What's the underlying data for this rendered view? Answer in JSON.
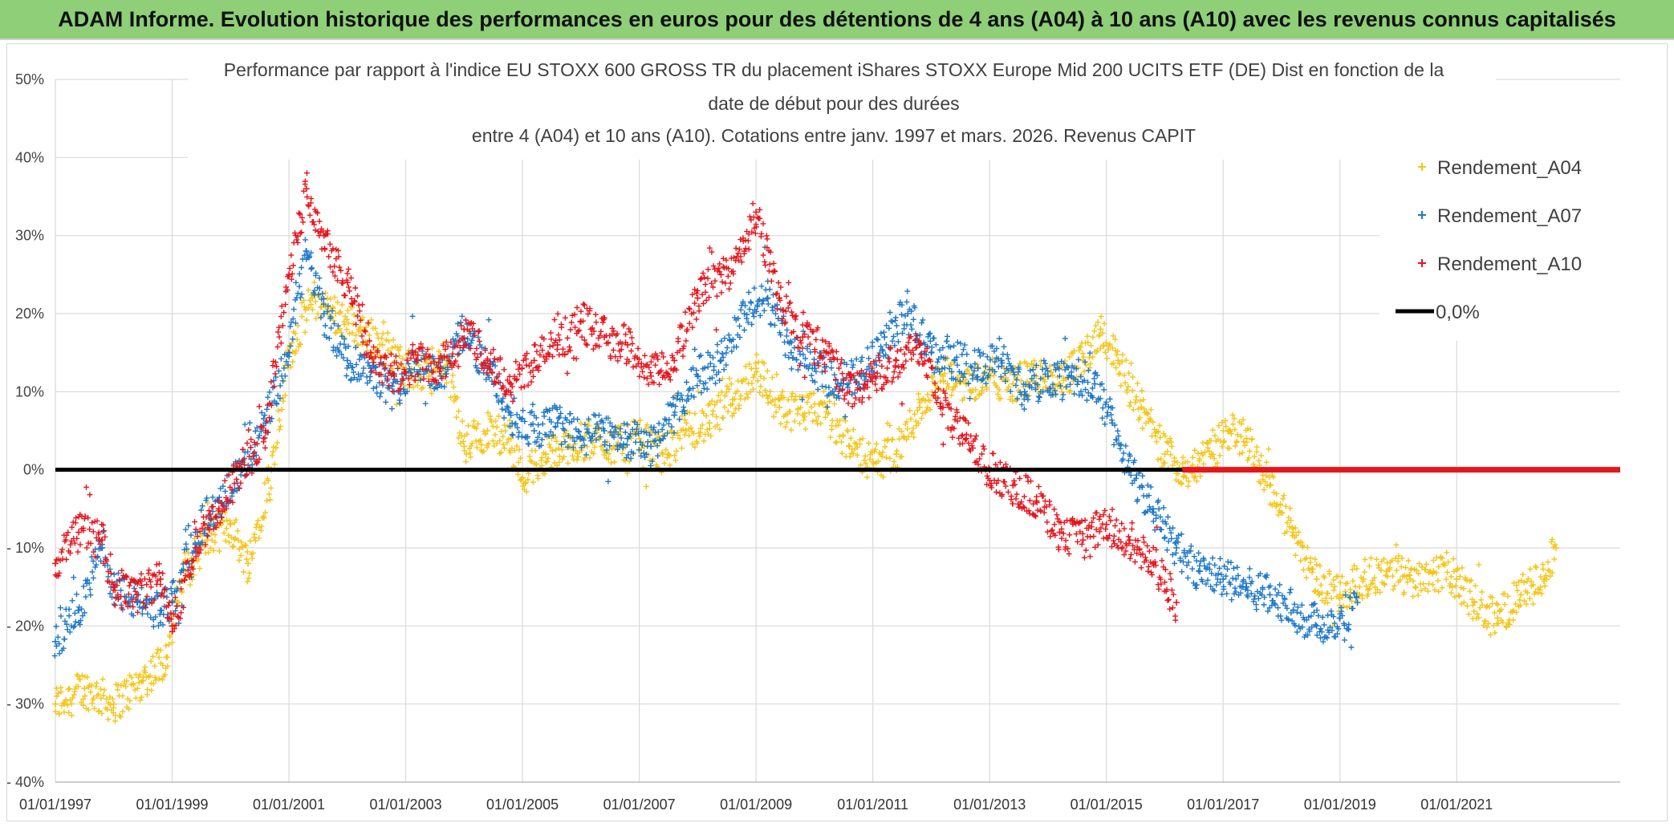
{
  "header": {
    "title": "ADAM Informe. Evolution historique des performances en euros pour des détentions de 4 ans (A04) à 10 ans (A10) avec les revenus connus capitalisés"
  },
  "chart_data": {
    "type": "scatter",
    "title_lines": [
      "Performance par rapport à l'indice EU STOXX 600 GROSS TR  du placement iShares STOXX Europe Mid 200 UCITS ETF (DE) Dist en fonction de la",
      "date de début pour des durées",
      "entre 4 (A04) et 10 ans (A10). Cotations entre janv. 1997 et mars. 2026. Revenus CAPIT"
    ],
    "xlabel": "",
    "ylabel": "",
    "x_range": [
      1997.0,
      2023.8
    ],
    "ylim": [
      -40,
      50
    ],
    "y_ticks": [
      50,
      40,
      30,
      20,
      10,
      0,
      -10,
      -20,
      -30,
      -40
    ],
    "y_tick_labels": [
      "50%",
      "40%",
      "30%",
      "20%",
      "10%",
      "0%",
      "- 10%",
      "- 20%",
      "- 30%",
      "- 40%"
    ],
    "x_ticks": [
      1997,
      1999,
      2001,
      2003,
      2005,
      2007,
      2009,
      2011,
      2013,
      2015,
      2017,
      2019,
      2021
    ],
    "x_tick_labels": [
      "01/01/1997",
      "01/01/1999",
      "01/01/2001",
      "01/01/2003",
      "01/01/2005",
      "01/01/2007",
      "01/01/2009",
      "01/01/2011",
      "01/01/2013",
      "01/01/2015",
      "01/01/2017",
      "01/01/2019",
      "01/01/2021"
    ],
    "grid": true,
    "legend_position": "top-right",
    "series": [
      {
        "name": "Rendement_A04",
        "color": "#f5c518",
        "marker": "plus",
        "x": [
          1997.0,
          1997.5,
          1998.0,
          1998.5,
          1998.9,
          1999.2,
          1999.6,
          2000.0,
          2000.3,
          2000.7,
          2001.0,
          2001.4,
          2001.8,
          2002.2,
          2002.6,
          2003.0,
          2003.4,
          2003.7,
          2004.0,
          2004.4,
          2004.8,
          2005.0,
          2005.4,
          2005.8,
          2006.2,
          2006.6,
          2007.0,
          2007.4,
          2007.8,
          2008.2,
          2008.6,
          2009.0,
          2009.4,
          2009.8,
          2010.2,
          2010.6,
          2011.0,
          2011.4,
          2011.8,
          2012.2,
          2012.6,
          2013.0,
          2013.4,
          2013.8,
          2014.2,
          2014.6,
          2014.9,
          2015.2,
          2015.6,
          2016.0,
          2016.4,
          2016.8,
          2017.1,
          2017.4,
          2017.8,
          2018.2,
          2018.6,
          2019.0,
          2019.4,
          2019.8,
          2020.2,
          2020.6,
          2021.0,
          2021.3,
          2021.7,
          2022.1,
          2022.5,
          2022.7
        ],
        "y": [
          -30,
          -28,
          -30,
          -27,
          -24,
          -13,
          -9,
          -7,
          -12,
          0,
          15,
          22,
          20,
          18,
          16,
          13,
          12,
          14,
          3,
          5,
          4,
          -1,
          2,
          3,
          4,
          3,
          4,
          2,
          5,
          6,
          9,
          13,
          8,
          7,
          8,
          3,
          1,
          2,
          8,
          12,
          11,
          12,
          11,
          12,
          11,
          14,
          18,
          14,
          8,
          2,
          0,
          2,
          5,
          4,
          -2,
          -8,
          -14,
          -16,
          -14,
          -13,
          -14,
          -13,
          -14,
          -17,
          -19,
          -16,
          -14,
          -10
        ]
      },
      {
        "name": "Rendement_A07",
        "color": "#1f78c8",
        "marker": "plus",
        "x": [
          1997.0,
          1997.4,
          1997.8,
          1998.0,
          1998.4,
          1998.8,
          1999.0,
          1999.4,
          1999.8,
          2000.2,
          2000.6,
          2001.0,
          2001.3,
          2001.6,
          2002.0,
          2002.4,
          2002.8,
          2003.2,
          2003.6,
          2004.0,
          2004.4,
          2004.8,
          2005.2,
          2005.6,
          2006.0,
          2006.4,
          2006.8,
          2007.2,
          2007.6,
          2008.0,
          2008.4,
          2008.8,
          2009.2,
          2009.6,
          2010.0,
          2010.4,
          2010.8,
          2011.2,
          2011.6,
          2012.0,
          2012.4,
          2012.8,
          2013.2,
          2013.6,
          2014.0,
          2014.4,
          2014.8,
          2015.1,
          2015.4,
          2015.8,
          2016.2,
          2016.6,
          2017.0,
          2017.4,
          2017.8,
          2018.2,
          2018.6,
          2019.0,
          2019.3
        ],
        "y": [
          -22,
          -18,
          -10,
          -15,
          -17,
          -18,
          -17,
          -8,
          -4,
          0,
          6,
          15,
          28,
          20,
          14,
          13,
          10,
          14,
          12,
          18,
          13,
          7,
          5,
          6,
          4,
          5,
          4,
          3,
          7,
          12,
          14,
          20,
          22,
          15,
          13,
          11,
          12,
          17,
          20,
          15,
          14,
          13,
          14,
          10,
          12,
          12,
          11,
          6,
          0,
          -5,
          -10,
          -13,
          -14,
          -15,
          -16,
          -18,
          -20,
          -19,
          -17
        ]
      },
      {
        "name": "Rendement_A10",
        "color": "#e8141c",
        "marker": "plus",
        "x": [
          1997.0,
          1997.4,
          1997.8,
          1998.0,
          1998.4,
          1998.8,
          1999.0,
          1999.4,
          1999.8,
          2000.2,
          2000.6,
          2001.0,
          2001.3,
          2001.6,
          2002.0,
          2002.4,
          2002.8,
          2003.2,
          2003.6,
          2004.0,
          2004.4,
          2004.8,
          2005.2,
          2005.6,
          2006.0,
          2006.4,
          2006.8,
          2007.2,
          2007.6,
          2008.0,
          2008.4,
          2008.8,
          2009.0,
          2009.4,
          2009.8,
          2010.2,
          2010.6,
          2011.0,
          2011.4,
          2011.8,
          2012.2,
          2012.6,
          2013.0,
          2013.4,
          2013.8,
          2014.2,
          2014.6,
          2015.0,
          2015.4,
          2015.8,
          2016.2
        ],
        "y": [
          -12,
          -8,
          -9,
          -15,
          -16,
          -14,
          -20,
          -10,
          -5,
          0,
          5,
          25,
          36,
          30,
          24,
          15,
          12,
          14,
          13,
          18,
          14,
          11,
          14,
          16,
          19,
          17,
          16,
          12,
          14,
          22,
          25,
          28,
          33,
          22,
          17,
          15,
          10,
          12,
          14,
          16,
          8,
          4,
          0,
          -2,
          -4,
          -8,
          -9,
          -7,
          -9,
          -12,
          -17
        ]
      },
      {
        "name": "0,0%",
        "color": "#000000",
        "marker": "line",
        "x": [
          1997.0,
          2023.8
        ],
        "y": [
          0,
          0
        ]
      }
    ],
    "a10_zero_segment": {
      "color": "#e8141c",
      "x": [
        2016.3,
        2023.8
      ],
      "y": [
        0,
        0
      ]
    }
  }
}
